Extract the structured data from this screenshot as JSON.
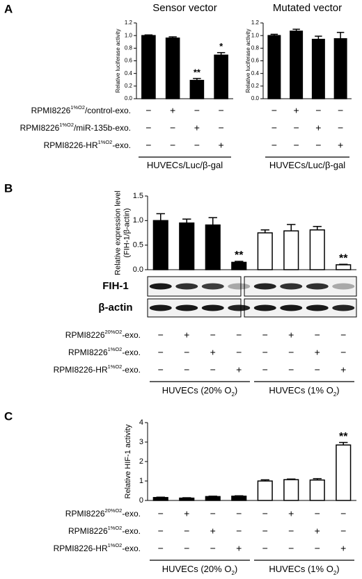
{
  "panel_labels": [
    "A",
    "B",
    "C"
  ],
  "chart_data": [
    {
      "type": "bar",
      "title": "Sensor vector",
      "y_label": [
        "Relative luciferase activity"
      ],
      "values": [
        1.0,
        0.96,
        0.29,
        0.69
      ],
      "errors": [
        0.01,
        0.02,
        0.03,
        0.04
      ],
      "annotations": [
        null,
        null,
        "**",
        "*"
      ],
      "color": "#000000",
      "ylim": [
        0,
        1.2
      ],
      "yticks": [
        {
          "value": 0,
          "label": "0.0"
        },
        {
          "value": 0.2,
          "label": "0.2"
        },
        {
          "value": 0.4,
          "label": "0.4"
        },
        {
          "value": 0.6,
          "label": "0.6"
        },
        {
          "value": 0.8,
          "label": "0.8"
        },
        {
          "value": 1,
          "label": "1.0"
        },
        {
          "value": 1.2,
          "label": "1.2"
        }
      ]
    },
    {
      "type": "bar",
      "title": "Mutated vector",
      "y_label": [
        "Relative luciferase activity"
      ],
      "values": [
        1.0,
        1.07,
        0.94,
        0.95
      ],
      "errors": [
        0.02,
        0.03,
        0.05,
        0.1
      ],
      "annotations": [
        null,
        null,
        null,
        null
      ],
      "color": "#000000",
      "ylim": [
        0,
        1.2
      ],
      "yticks": [
        {
          "value": 0,
          "label": "0.0"
        },
        {
          "value": 0.2,
          "label": "0.2"
        },
        {
          "value": 0.4,
          "label": "0.4"
        },
        {
          "value": 0.6,
          "label": "0.6"
        },
        {
          "value": 0.8,
          "label": "0.8"
        },
        {
          "value": 1,
          "label": "1.0"
        },
        {
          "value": 1.2,
          "label": "1.2"
        }
      ]
    },
    {
      "type": "bar",
      "y_label": [
        "Relative expression level",
        "(FIH-1/β-actin)"
      ],
      "values": [
        1.0,
        0.95,
        0.91,
        0.15,
        0.75,
        0.79,
        0.81,
        0.1
      ],
      "errors": [
        0.14,
        0.08,
        0.15,
        0.02,
        0.06,
        0.13,
        0.07,
        0.01
      ],
      "annotations": [
        null,
        null,
        null,
        "**",
        null,
        null,
        null,
        "**"
      ],
      "colors": [
        "#000000",
        "#000000",
        "#000000",
        "#000000",
        "#ffffff",
        "#ffffff",
        "#ffffff",
        "#ffffff"
      ],
      "ylim": [
        0,
        1.5
      ],
      "yticks": [
        {
          "value": 0,
          "label": "0.0"
        },
        {
          "value": 0.5,
          "label": "0.5"
        },
        {
          "value": 1,
          "label": "1.0"
        },
        {
          "value": 1.5,
          "label": "1.5"
        }
      ]
    },
    {
      "type": "bar",
      "y_label": [
        "Relative HIF-1 activity"
      ],
      "values": [
        0.15,
        0.12,
        0.2,
        0.22,
        1.0,
        1.07,
        1.05,
        2.85
      ],
      "errors": [
        0.02,
        0.02,
        0.02,
        0.02,
        0.06,
        0.03,
        0.07,
        0.13
      ],
      "annotations": [
        null,
        null,
        null,
        null,
        null,
        null,
        null,
        "**"
      ],
      "colors": [
        "#000000",
        "#000000",
        "#000000",
        "#000000",
        "#ffffff",
        "#ffffff",
        "#ffffff",
        "#ffffff"
      ],
      "ylim": [
        0,
        4
      ],
      "yticks": [
        0,
        1,
        2,
        3,
        4
      ]
    }
  ],
  "conditions": [
    {
      "rows": [
        {
          "label": [
            "RPMI8226",
            {
              "sup": "1%O2"
            },
            "/control-exo."
          ],
          "signs": [
            "−",
            "+",
            "−",
            "−"
          ]
        },
        {
          "label": [
            "RPMI8226",
            {
              "sup": "1%O2"
            },
            "/miR-135b-exo."
          ],
          "signs": [
            "−",
            "−",
            "+",
            "−"
          ]
        },
        {
          "label": [
            "RPMI8226-HR",
            {
              "sup": "1%O2"
            },
            "-exo."
          ],
          "signs": [
            "−",
            "−",
            "−",
            "+"
          ]
        }
      ],
      "groups": [
        {
          "label": [
            "HUVECs/Luc/β-gal"
          ]
        }
      ]
    },
    {
      "rows": [
        {
          "signs": [
            "−",
            "+",
            "−",
            "−"
          ]
        },
        {
          "signs": [
            "−",
            "−",
            "+",
            "−"
          ]
        },
        {
          "signs": [
            "−",
            "−",
            "−",
            "+"
          ]
        }
      ],
      "groups": [
        {
          "label": [
            "HUVECs/Luc/β-gal"
          ]
        }
      ]
    },
    {
      "rows": [
        {
          "label": [
            "RPMI8226",
            {
              "sup": "20%O2"
            },
            "-exo."
          ],
          "signs": [
            "−",
            "+",
            "−",
            "−",
            "−",
            "+",
            "−",
            "−"
          ]
        },
        {
          "label": [
            "RPMI8226",
            {
              "sup": "1%O2"
            },
            "-exo."
          ],
          "signs": [
            "−",
            "−",
            "+",
            "−",
            "−",
            "−",
            "+",
            "−"
          ]
        },
        {
          "label": [
            "RPMI8226-HR",
            {
              "sup": "1%O2"
            },
            "-exo."
          ],
          "signs": [
            "−",
            "−",
            "−",
            "+",
            "−",
            "−",
            "−",
            "+"
          ]
        }
      ],
      "groups": [
        {
          "label": [
            "HUVECs (20% O",
            {
              "sub": "2"
            },
            ")"
          ]
        },
        {
          "label": [
            "HUVECs (1% O",
            {
              "sub": "2"
            },
            ")"
          ]
        }
      ]
    },
    {
      "rows": [
        {
          "label": [
            "RPMI8226",
            {
              "sup": "20%O2"
            },
            "-exo."
          ],
          "signs": [
            "−",
            "+",
            "−",
            "−",
            "−",
            "+",
            "−",
            "−"
          ]
        },
        {
          "label": [
            "RPMI8226",
            {
              "sup": "1%O2"
            },
            "-exo."
          ],
          "signs": [
            "−",
            "−",
            "+",
            "−",
            "−",
            "−",
            "+",
            "−"
          ]
        },
        {
          "label": [
            "RPMI8226-HR",
            {
              "sup": "1%O2"
            },
            "-exo."
          ],
          "signs": [
            "−",
            "−",
            "−",
            "+",
            "−",
            "−",
            "−",
            "+"
          ]
        }
      ],
      "groups": [
        {
          "label": [
            "HUVECs (20% O",
            {
              "sub": "2"
            },
            ")"
          ]
        },
        {
          "label": [
            "HUVECs (1% O",
            {
              "sub": "2"
            },
            ")"
          ]
        }
      ]
    }
  ],
  "blot": {
    "labels": [
      "FIH-1",
      "β-actin"
    ]
  }
}
